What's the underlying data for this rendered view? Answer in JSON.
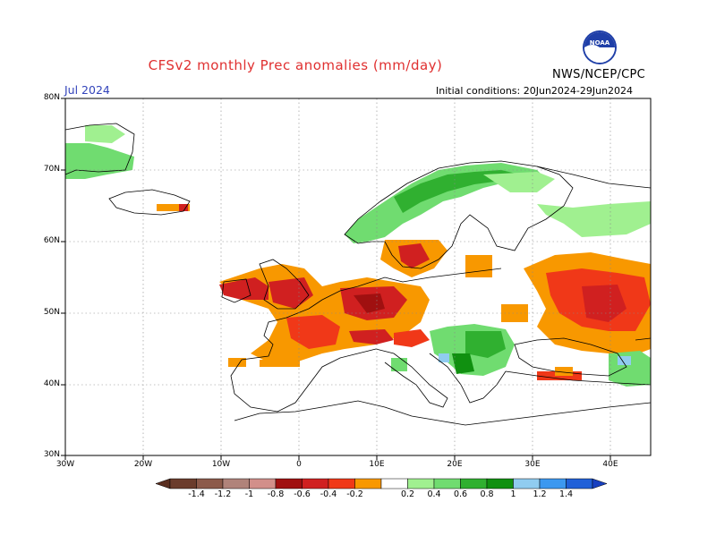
{
  "header": {
    "title": "CFSv2 monthly Prec anomalies (mm/day)",
    "month": "Jul 2024",
    "initial_conditions": "Initial conditions: 20Jun2024-29Jun2024",
    "agency": "NWS/NCEP/CPC",
    "logo_text": "NOAA"
  },
  "map": {
    "region": "Europe",
    "variable": "Precipitation anomaly",
    "units": "mm/day",
    "lat_labels": [
      "80N",
      "70N",
      "60N",
      "50N",
      "40N",
      "30N"
    ],
    "lon_labels": [
      "30W",
      "20W",
      "10W",
      "0",
      "10E",
      "20E",
      "30E",
      "40E"
    ]
  },
  "colorbar": {
    "labels": [
      "-1.4",
      "-1.2",
      "-1",
      "-0.8",
      "-0.6",
      "-0.4",
      "-0.2",
      "0.2",
      "0.4",
      "0.6",
      "0.8",
      "1",
      "1.2",
      "1.4"
    ],
    "colors": [
      "#6b3c2c",
      "#8c5a4a",
      "#b0837a",
      "#d28f8a",
      "#a01010",
      "#d02020",
      "#f03818",
      "#f89800",
      "#ffffff",
      "#a0f090",
      "#70dc70",
      "#30b030",
      "#109010",
      "#90ccf0",
      "#3c98f0",
      "#2060d8"
    ],
    "tip_left_color": "#5a2f20",
    "tip_right_color": "#1840c0"
  }
}
